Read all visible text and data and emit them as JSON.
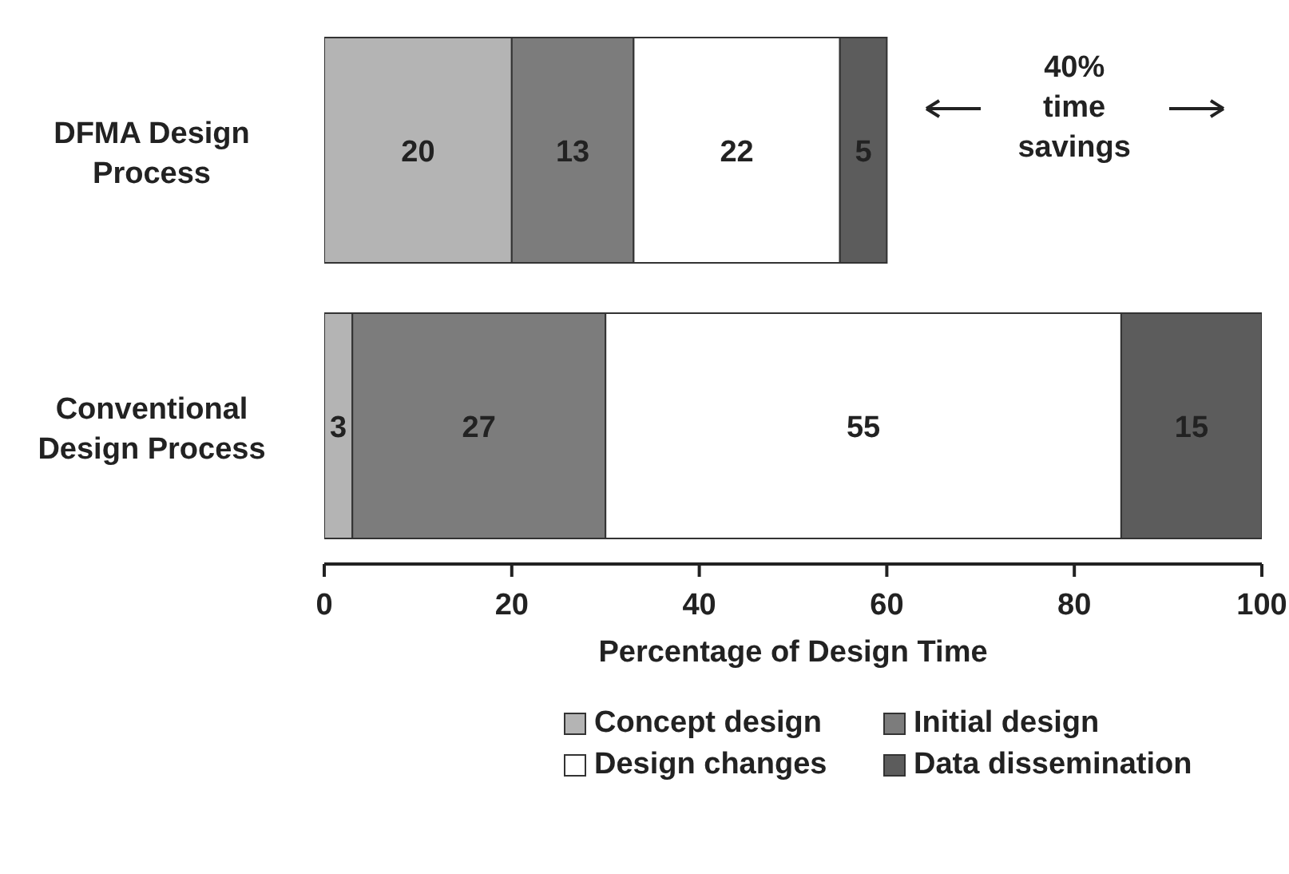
{
  "chart_data": {
    "type": "bar",
    "orientation": "horizontal",
    "stacked": true,
    "categories": [
      "DFMA Design Process",
      "Conventional Design Process"
    ],
    "series": [
      {
        "name": "Concept design",
        "color": "#b4b4b4",
        "values": [
          20,
          3
        ]
      },
      {
        "name": "Initial design",
        "color": "#7c7c7c",
        "values": [
          13,
          27
        ]
      },
      {
        "name": "Design changes",
        "color": "#ffffff",
        "values": [
          22,
          55
        ]
      },
      {
        "name": "Data dissemination",
        "color": "#5c5c5c",
        "values": [
          5,
          15
        ]
      }
    ],
    "xlim": [
      0,
      100
    ],
    "xticks": [
      0,
      20,
      40,
      60,
      80,
      100
    ],
    "xlabel": "Percentage of Design Time",
    "legend": "bottom",
    "data_labels": true,
    "annotations": [
      "40% time savings"
    ]
  }
}
